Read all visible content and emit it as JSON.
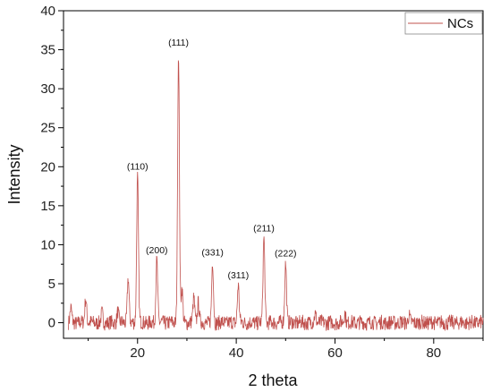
{
  "chart_data": {
    "type": "line",
    "title": "",
    "xlabel": "2 theta",
    "ylabel": "Intensity",
    "xlim": [
      5,
      90
    ],
    "ylim": [
      -2,
      40
    ],
    "x_ticks": [
      20,
      40,
      60,
      80
    ],
    "y_ticks": [
      0,
      5,
      10,
      15,
      20,
      25,
      30,
      35,
      40
    ],
    "grid": false,
    "legend": {
      "position": "top-right",
      "entries": [
        "NCs"
      ]
    },
    "series": [
      {
        "name": "NCs",
        "color": "#c0504d",
        "peaks": [
          {
            "x": 6.5,
            "y": 1.8
          },
          {
            "x": 9.5,
            "y": 3.2
          },
          {
            "x": 12.8,
            "y": 1.2
          },
          {
            "x": 16.0,
            "y": 1.5
          },
          {
            "x": 18.1,
            "y": 5.8
          },
          {
            "x": 20.0,
            "y": 18.8
          },
          {
            "x": 23.9,
            "y": 8.1
          },
          {
            "x": 28.3,
            "y": 34.7
          },
          {
            "x": 29.0,
            "y": 4.3
          },
          {
            "x": 31.4,
            "y": 3.2
          },
          {
            "x": 32.3,
            "y": 2.6
          },
          {
            "x": 35.2,
            "y": 7.8
          },
          {
            "x": 40.4,
            "y": 4.9
          },
          {
            "x": 45.6,
            "y": 10.9
          },
          {
            "x": 50.0,
            "y": 7.7
          },
          {
            "x": 56.0,
            "y": 1.2
          },
          {
            "x": 62.0,
            "y": 1.3
          },
          {
            "x": 75.0,
            "y": 0.9
          }
        ]
      }
    ],
    "annotations": [
      {
        "text": "(110)",
        "x": 20.0,
        "y": 18.8
      },
      {
        "text": "(200)",
        "x": 23.9,
        "y": 8.1
      },
      {
        "text": "(111)",
        "x": 28.3,
        "y": 34.7
      },
      {
        "text": "(331)",
        "x": 35.2,
        "y": 7.8
      },
      {
        "text": "(311)",
        "x": 40.4,
        "y": 4.9
      },
      {
        "text": "(211)",
        "x": 45.6,
        "y": 10.9
      },
      {
        "text": "(222)",
        "x": 50.0,
        "y": 7.7
      }
    ]
  }
}
